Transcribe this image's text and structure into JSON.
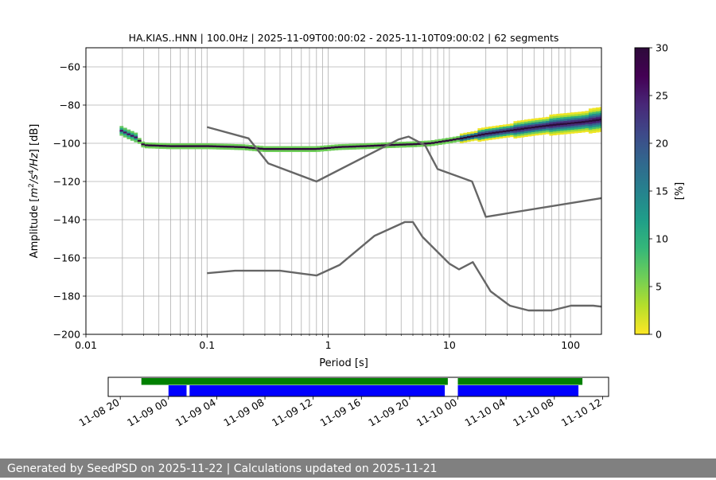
{
  "footer": {
    "text": "Generated by SeedPSD on 2025-11-22 | Calculations updated on 2025-11-21",
    "background": "#808080"
  },
  "chart_data": [
    {
      "type": "heatmap",
      "title": "HA.KIAS..HNN | 100.0Hz | 2025-11-09T00:00:02 - 2025-11-10T09:00:02 | 62 segments",
      "xlabel": "Period [s]",
      "ylabel_parts": [
        "Amplitude [",
        "m",
        "2",
        "/",
        "s",
        "4",
        "/",
        "Hz",
        "] [dB]"
      ],
      "x_scale": "log",
      "xlim": [
        0.01,
        180
      ],
      "ylim": [
        -200,
        -50
      ],
      "x_ticks": [
        {
          "value": 0.01,
          "label": "0.01"
        },
        {
          "value": 0.1,
          "label": "0.1"
        },
        {
          "value": 1,
          "label": "1"
        },
        {
          "value": 10,
          "label": "10"
        },
        {
          "value": 100,
          "label": "100"
        }
      ],
      "y_ticks": [
        {
          "value": -60,
          "label": "−60"
        },
        {
          "value": -80,
          "label": "−80"
        },
        {
          "value": -100,
          "label": "−100"
        },
        {
          "value": -120,
          "label": "−120"
        },
        {
          "value": -140,
          "label": "−140"
        },
        {
          "value": -160,
          "label": "−160"
        },
        {
          "value": -180,
          "label": "−180"
        },
        {
          "value": -200,
          "label": "−200"
        }
      ],
      "grid": true,
      "grid_periods_start": 0.02,
      "colorbar": {
        "label": "[%]",
        "range": [
          0,
          30
        ],
        "ticks": [
          {
            "value": 0,
            "label": "0"
          },
          {
            "value": 5,
            "label": "5"
          },
          {
            "value": 10,
            "label": "10"
          },
          {
            "value": 15,
            "label": "15"
          },
          {
            "value": 20,
            "label": "20"
          },
          {
            "value": 25,
            "label": "25"
          },
          {
            "value": 30,
            "label": "30"
          }
        ],
        "colormap": [
          "#fde725",
          "#b5de2b",
          "#6ece58",
          "#35b779",
          "#1f9e89",
          "#26828e",
          "#31688e",
          "#3e4989",
          "#482878",
          "#440154",
          "#2d0a3a"
        ]
      },
      "psd_mode_curve": [
        [
          0.019,
          -93
        ],
        [
          0.022,
          -95
        ],
        [
          0.026,
          -97
        ],
        [
          0.03,
          -101
        ],
        [
          0.05,
          -101.5
        ],
        [
          0.1,
          -101.5
        ],
        [
          0.2,
          -102
        ],
        [
          0.3,
          -103
        ],
        [
          0.5,
          -103
        ],
        [
          0.8,
          -103
        ],
        [
          1.2,
          -102
        ],
        [
          2,
          -101.5
        ],
        [
          3,
          -101
        ],
        [
          5,
          -100.5
        ],
        [
          7,
          -100
        ],
        [
          10,
          -98.5
        ],
        [
          15,
          -96.5
        ],
        [
          20,
          -95
        ],
        [
          30,
          -93.5
        ],
        [
          50,
          -91.5
        ],
        [
          80,
          -90
        ],
        [
          120,
          -89
        ],
        [
          180,
          -87.5
        ]
      ],
      "series": [
        {
          "name": "",
          "color": "#666666",
          "points": [
            [
              0.1,
              -91.5
            ],
            [
              0.22,
              -97.4
            ],
            [
              0.32,
              -110.5
            ],
            [
              0.8,
              -120
            ],
            [
              3.8,
              -98
            ],
            [
              4.6,
              -96.5
            ],
            [
              6.3,
              -101
            ],
            [
              8,
              -113.5
            ],
            [
              15.4,
              -120
            ],
            [
              20,
              -138.5
            ],
            [
              180,
              -128.7
            ]
          ]
        },
        {
          "name": "",
          "color": "#666666",
          "points": [
            [
              0.1,
              -168
            ],
            [
              0.17,
              -166.7
            ],
            [
              0.4,
              -166.7
            ],
            [
              0.8,
              -169.2
            ],
            [
              1.24,
              -163.7
            ],
            [
              2.4,
              -148.5
            ],
            [
              4.3,
              -141.2
            ],
            [
              5.0,
              -141.2
            ],
            [
              6.0,
              -149
            ],
            [
              10,
              -163
            ],
            [
              12,
              -166
            ],
            [
              15.6,
              -162.2
            ],
            [
              21.9,
              -177.5
            ],
            [
              31.6,
              -185
            ],
            [
              45,
              -187.5
            ],
            [
              70,
              -187.5
            ],
            [
              101,
              -185
            ],
            [
              154,
              -185
            ],
            [
              180,
              -185.5
            ]
          ]
        }
      ]
    },
    {
      "type": "timeline",
      "x_axis": "time",
      "xlim": [
        "2025-11-08T19:00",
        "2025-11-10T12:30"
      ],
      "tick_labels": [
        {
          "time": "2025-11-08T20:00",
          "label": "11-08 20"
        },
        {
          "time": "2025-11-09T00:00",
          "label": "11-09 00"
        },
        {
          "time": "2025-11-09T04:00",
          "label": "11-09 04"
        },
        {
          "time": "2025-11-09T08:00",
          "label": "11-09 08"
        },
        {
          "time": "2025-11-09T12:00",
          "label": "11-09 12"
        },
        {
          "time": "2025-11-09T16:00",
          "label": "11-09 16"
        },
        {
          "time": "2025-11-09T20:00",
          "label": "11-09 20"
        },
        {
          "time": "2025-11-10T00:00",
          "label": "11-10 00"
        },
        {
          "time": "2025-11-10T04:00",
          "label": "11-10 04"
        },
        {
          "time": "2025-11-10T08:00",
          "label": "11-10 08"
        },
        {
          "time": "2025-11-10T12:00",
          "label": "11-10 12"
        }
      ],
      "bars": [
        {
          "color": "#008000",
          "start": "2025-11-08T21:45",
          "end": "2025-11-09T23:10",
          "row": "top"
        },
        {
          "color": "#008000",
          "start": "2025-11-10T00:00",
          "end": "2025-11-10T10:20",
          "row": "top"
        },
        {
          "color": "#0000ff",
          "start": "2025-11-09T00:00",
          "end": "2025-11-09T01:30",
          "row": "bottom"
        },
        {
          "color": "#0000ff",
          "start": "2025-11-09T01:45",
          "end": "2025-11-09T22:55",
          "row": "bottom"
        },
        {
          "color": "#0000ff",
          "start": "2025-11-10T00:00",
          "end": "2025-11-10T10:00",
          "row": "bottom"
        }
      ]
    }
  ]
}
